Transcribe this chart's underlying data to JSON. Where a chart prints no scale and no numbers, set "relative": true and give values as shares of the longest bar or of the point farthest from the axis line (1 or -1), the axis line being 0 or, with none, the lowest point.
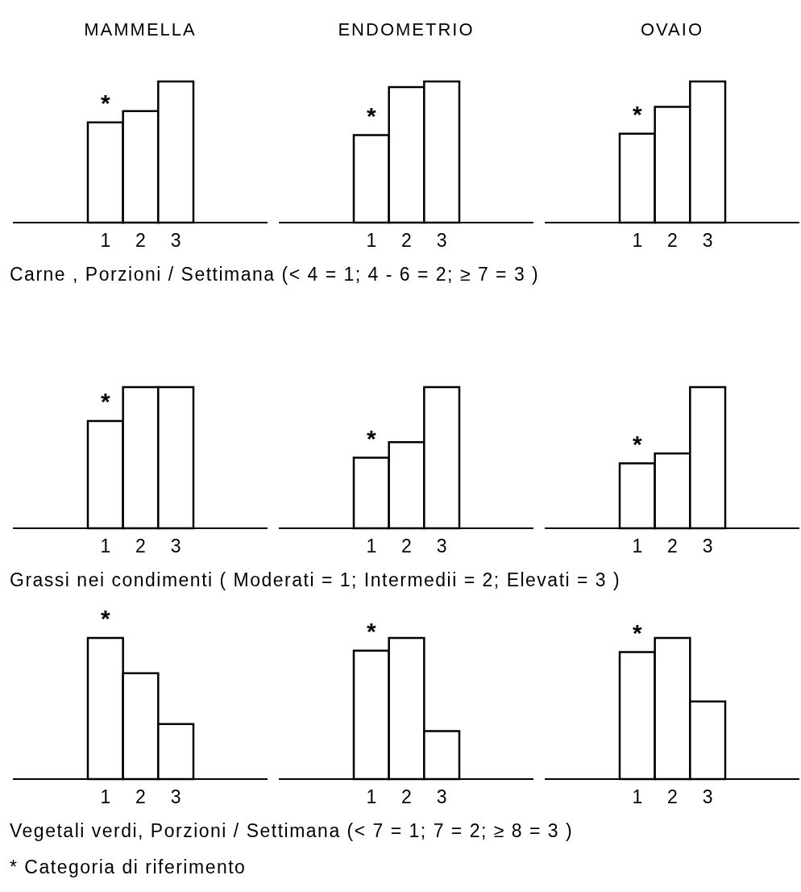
{
  "chart_data": [
    {
      "type": "bar",
      "title": "MAMMELLA",
      "categories": [
        "1",
        "2",
        "3"
      ],
      "values": [
        0.71,
        0.79,
        1
      ],
      "color": "#ffffff",
      "relative": true,
      "annotations": [
        "*",
        "Carne ,  Porzioni / Settimana (< 4 = 1; 4 - 6 = 2; ≥ 7 = 3 )"
      ]
    },
    {
      "type": "bar",
      "title": "ENDOMETRIO",
      "categories": [
        "1",
        "2",
        "3"
      ],
      "values": [
        0.62,
        0.96,
        1
      ],
      "color": "#ffffff",
      "relative": true,
      "annotations": [
        "*"
      ]
    },
    {
      "type": "bar",
      "title": "OVAIO",
      "categories": [
        "1",
        "2",
        "3"
      ],
      "values": [
        0.63,
        0.82,
        1
      ],
      "color": "#ffffff",
      "relative": true,
      "annotations": [
        "*"
      ]
    },
    {
      "type": "bar",
      "categories": [
        "1",
        "2",
        "3"
      ],
      "values": [
        0.76,
        1,
        1
      ],
      "color": "#ffffff",
      "relative": true,
      "annotations": [
        "*",
        "Grassi nei condimenti ( Moderati = 1; Intermedii = 2; Elevati = 3 )"
      ]
    },
    {
      "type": "bar",
      "categories": [
        "1",
        "2",
        "3"
      ],
      "values": [
        0.5,
        0.61,
        1
      ],
      "color": "#ffffff",
      "relative": true,
      "annotations": [
        "*"
      ]
    },
    {
      "type": "bar",
      "categories": [
        "1",
        "2",
        "3"
      ],
      "values": [
        0.46,
        0.53,
        1
      ],
      "color": "#ffffff",
      "relative": true,
      "annotations": [
        "*"
      ]
    },
    {
      "type": "bar",
      "categories": [
        "1",
        "2",
        "3"
      ],
      "values": [
        1,
        0.75,
        0.39
      ],
      "color": "#ffffff",
      "relative": true,
      "annotations": [
        "*",
        "Vegetali verdi, Porzioni / Settimana (< 7 = 1; 7 = 2; ≥ 8 = 3 )",
        "* Categoria di riferimento"
      ]
    },
    {
      "type": "bar",
      "categories": [
        "1",
        "2",
        "3"
      ],
      "values": [
        0.91,
        1,
        0.34
      ],
      "color": "#ffffff",
      "relative": true,
      "annotations": [
        "*"
      ]
    },
    {
      "type": "bar",
      "categories": [
        "1",
        "2",
        "3"
      ],
      "values": [
        0.9,
        1,
        0.55
      ],
      "color": "#ffffff",
      "relative": true,
      "annotations": [
        "*"
      ]
    }
  ]
}
